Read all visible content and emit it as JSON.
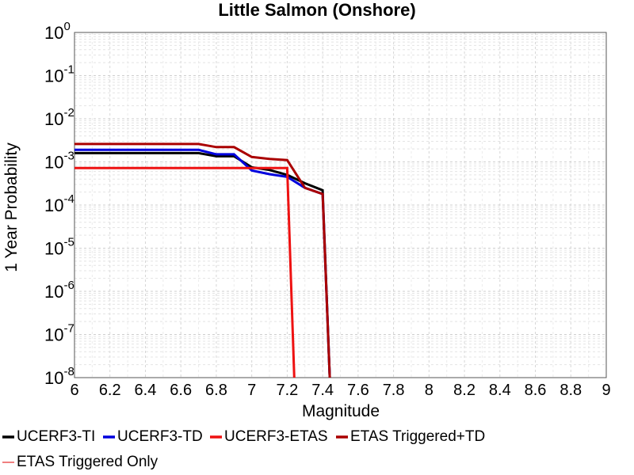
{
  "chart_data": {
    "type": "line",
    "title": "Little Salmon (Onshore)",
    "xlabel": "Magnitude",
    "ylabel": "1 Year Probability",
    "xlim": [
      6,
      9
    ],
    "ylim": [
      1e-08,
      1
    ],
    "yscale": "log",
    "grid": true,
    "legend_position": "bottom",
    "x_ticks": [
      "6",
      "6.2",
      "6.4",
      "6.6",
      "6.8",
      "7",
      "7.2",
      "7.4",
      "7.6",
      "7.8",
      "8",
      "8.2",
      "8.4",
      "8.6",
      "8.8",
      "9"
    ],
    "y_ticks": [
      {
        "base": "10",
        "exp": "0",
        "value": 1
      },
      {
        "base": "10",
        "exp": "-1",
        "value": 0.1
      },
      {
        "base": "10",
        "exp": "-2",
        "value": 0.01
      },
      {
        "base": "10",
        "exp": "-3",
        "value": 0.001
      },
      {
        "base": "10",
        "exp": "-4",
        "value": 0.0001
      },
      {
        "base": "10",
        "exp": "-5",
        "value": 1e-05
      },
      {
        "base": "10",
        "exp": "-6",
        "value": 1e-06
      },
      {
        "base": "10",
        "exp": "-7",
        "value": 1e-07
      },
      {
        "base": "10",
        "exp": "-8",
        "value": 1e-08
      }
    ],
    "series": [
      {
        "name": "UCERF3-TI",
        "color": "#000000",
        "x": [
          6.0,
          6.7,
          6.8,
          6.9,
          7.0,
          7.1,
          7.2,
          7.3,
          7.4,
          7.44
        ],
        "y": [
          0.0016,
          0.0016,
          0.00135,
          0.00135,
          0.00075,
          0.00065,
          0.0005,
          0.00032,
          0.00022,
          1e-08
        ]
      },
      {
        "name": "UCERF3-TD",
        "color": "#0000dd",
        "x": [
          6.0,
          6.7,
          6.8,
          6.9,
          7.0,
          7.1,
          7.2,
          7.3,
          7.4,
          7.44
        ],
        "y": [
          0.0019,
          0.0019,
          0.0015,
          0.0015,
          0.00063,
          0.00052,
          0.00045,
          0.00025,
          0.00018,
          1e-08
        ]
      },
      {
        "name": "UCERF3-ETAS",
        "color": "#ee1111",
        "x": [
          6.0,
          7.2,
          7.24
        ],
        "y": [
          0.00072,
          0.00072,
          1e-08
        ]
      },
      {
        "name": "ETAS Triggered+TD",
        "color": "#aa0000",
        "x": [
          6.0,
          6.7,
          6.8,
          6.9,
          7.0,
          7.1,
          7.2,
          7.3,
          7.4,
          7.44
        ],
        "y": [
          0.0026,
          0.0026,
          0.0022,
          0.0022,
          0.0013,
          0.00117,
          0.0011,
          0.00025,
          0.00018,
          1e-08
        ]
      },
      {
        "name": "ETAS Triggered Only",
        "color": "#f08080",
        "x": [],
        "y": []
      }
    ]
  }
}
